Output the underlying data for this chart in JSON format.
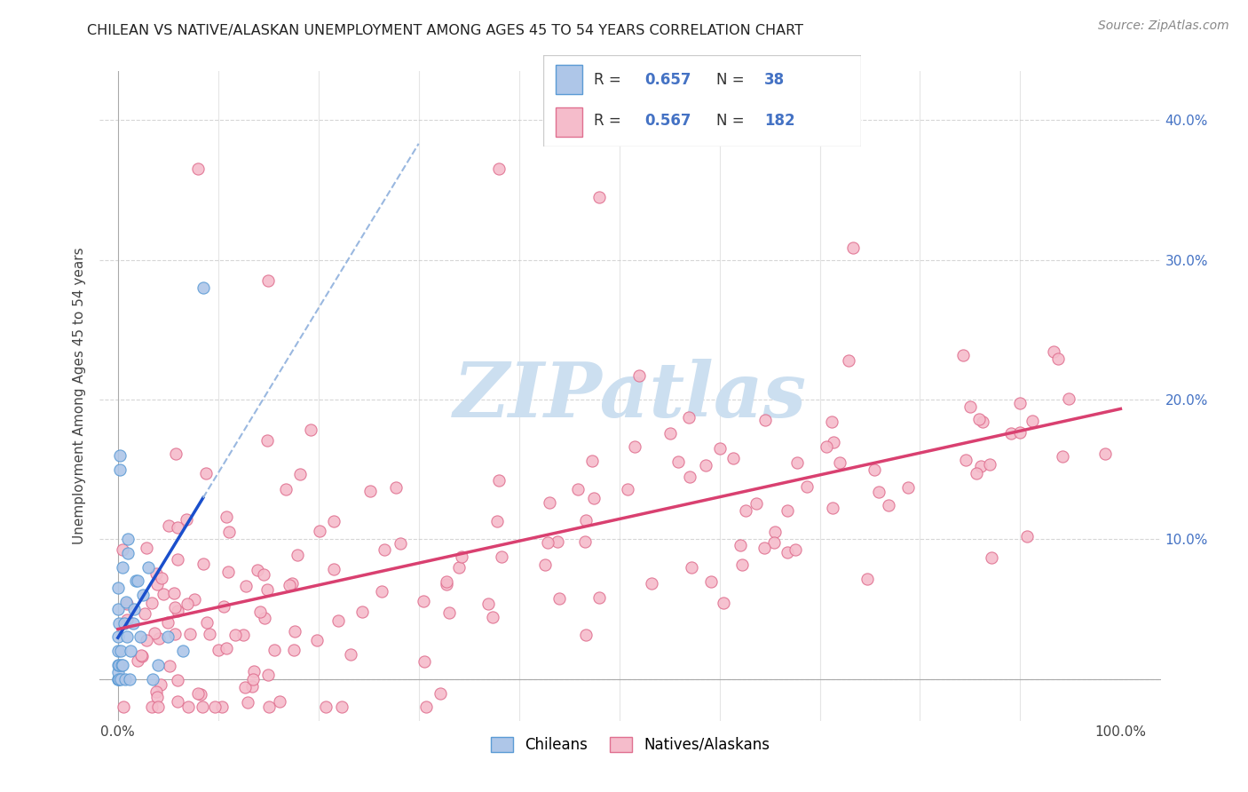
{
  "title": "CHILEAN VS NATIVE/ALASKAN UNEMPLOYMENT AMONG AGES 45 TO 54 YEARS CORRELATION CHART",
  "source": "Source: ZipAtlas.com",
  "ylabel": "Unemployment Among Ages 45 to 54 years",
  "chilean_R": 0.657,
  "chilean_N": 38,
  "native_R": 0.567,
  "native_N": 182,
  "chilean_color": "#aec6e8",
  "chilean_edge": "#5b9bd5",
  "native_color": "#f5bccb",
  "native_edge": "#e07090",
  "trend_chilean_color": "#1a4fcc",
  "trend_chilean_dash_color": "#9ab8e0",
  "trend_native_color": "#d94070",
  "watermark_color": "#ccdff0",
  "background_color": "#ffffff",
  "grid_color": "#cccccc",
  "title_fontsize": 11.5,
  "axis_label_fontsize": 11,
  "tick_fontsize": 11,
  "legend_fontsize": 12,
  "source_fontsize": 10,
  "blue_text_color": "#4472c4"
}
